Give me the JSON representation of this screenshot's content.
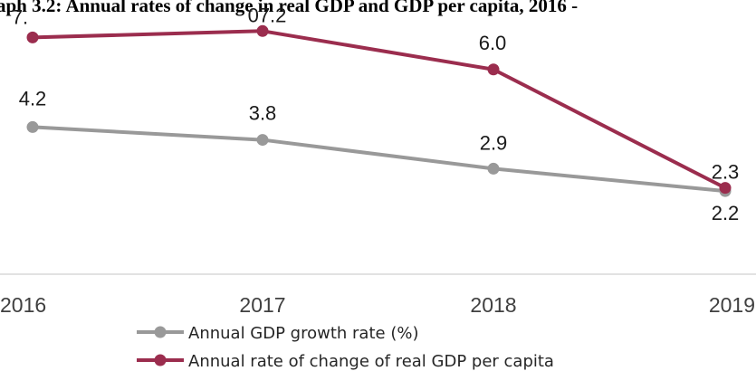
{
  "chart_data": {
    "type": "line",
    "title": "aph 3.2: Annual rates of change in real GDP and GDP per capita, 2016 -",
    "categories": [
      "2016",
      "2017",
      "2018",
      "2019"
    ],
    "series": [
      {
        "name": "Annual GDP growth rate (%)",
        "color": "#999999",
        "values": [
          4.2,
          3.8,
          2.9,
          2.2
        ],
        "labels": [
          "4.2",
          "3.8",
          "2.9",
          "2.2"
        ]
      },
      {
        "name": "Annual rate of change of real GDP per capita",
        "color": "#9b2d4e",
        "values": [
          7.0,
          7.2,
          6.0,
          2.3
        ],
        "labels": [
          "7.",
          "07.2",
          "6.0",
          "2.3"
        ]
      }
    ],
    "ylim": [
      0,
      8
    ],
    "grid": false,
    "legend_position": "bottom"
  }
}
